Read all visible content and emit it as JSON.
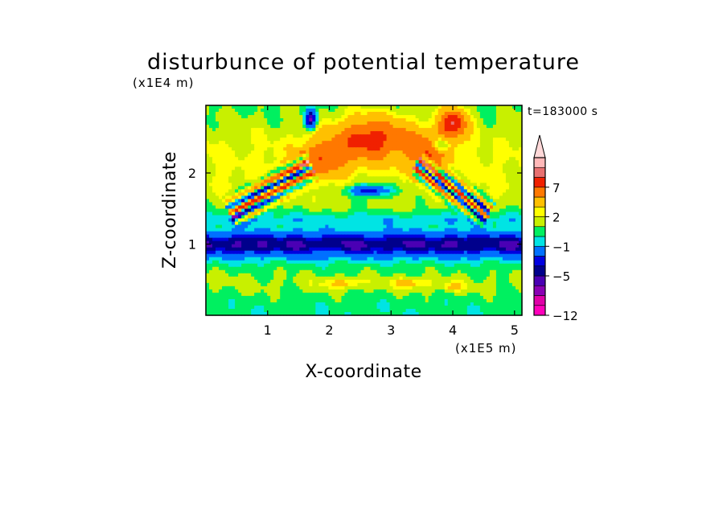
{
  "chart_data": {
    "type": "heatmap",
    "title": "disturbunce of potential temperature",
    "time_label": "t=183000 s",
    "xlabel": "X-coordinate",
    "ylabel": "Z-coordinate",
    "x_scale_label": "(x1E5 m)",
    "y_scale_label": "(x1E4 m)",
    "xlim": [
      0,
      5.12
    ],
    "ylim": [
      0,
      2.95
    ],
    "x_ticks": [
      {
        "value": 1,
        "label": "1"
      },
      {
        "value": 2,
        "label": "2"
      },
      {
        "value": 3,
        "label": "3"
      },
      {
        "value": 4,
        "label": "4"
      },
      {
        "value": 5,
        "label": "5"
      }
    ],
    "y_ticks": [
      {
        "value": 1,
        "label": "1"
      },
      {
        "value": 2,
        "label": "2"
      }
    ],
    "colorbar": {
      "levels": [
        -12,
        -10,
        -8,
        -6,
        -5,
        -4,
        -3,
        -1,
        0,
        1,
        2,
        3,
        5,
        7,
        9,
        11
      ],
      "colors": [
        "#ff00bb",
        "#e000a8",
        "#8a00b4",
        "#4a00b4",
        "#00008c",
        "#0000e0",
        "#0070ff",
        "#00e4e4",
        "#00f060",
        "#c8f000",
        "#ffff00",
        "#ffc000",
        "#ff7800",
        "#f02000",
        "#e87070",
        "#ffb8b8"
      ],
      "extend_color": "#ffd8d8",
      "tick_labels": [
        {
          "value": -12,
          "label": "−12"
        },
        {
          "value": -5,
          "label": "−5"
        },
        {
          "value": -1,
          "label": "−1"
        },
        {
          "value": 2,
          "label": "2"
        },
        {
          "value": 7,
          "label": "7"
        }
      ]
    },
    "features": [
      {
        "kind": "band",
        "z_center": 1.0,
        "z_half_width": 0.2,
        "value": -5.5
      },
      {
        "kind": "band",
        "z_center": 1.35,
        "z_half_width": 0.12,
        "value": -1.5
      },
      {
        "kind": "band",
        "z_center": 0.45,
        "z_half_width": 0.25,
        "value": 1.0
      },
      {
        "kind": "band",
        "z_center": 2.1,
        "z_half_width": 0.9,
        "value": 2.0
      },
      {
        "kind": "blob",
        "x": 2.7,
        "z": 2.5,
        "rx": 0.7,
        "rz": 0.35,
        "value": 6.0
      },
      {
        "kind": "blob",
        "x": 1.9,
        "z": 2.2,
        "rx": 0.5,
        "rz": 0.3,
        "value": 4.0
      },
      {
        "kind": "blob",
        "x": 3.6,
        "z": 2.3,
        "rx": 0.4,
        "rz": 0.3,
        "value": 4.0
      },
      {
        "kind": "blob",
        "x": 4.0,
        "z": 2.7,
        "rx": 0.25,
        "rz": 0.25,
        "value": 7.5
      },
      {
        "kind": "blob",
        "x": 2.65,
        "z": 1.75,
        "rx": 0.35,
        "rz": 0.08,
        "value": -5.0
      },
      {
        "kind": "blob",
        "x": 2.6,
        "z": 1.8,
        "rx": 0.7,
        "rz": 0.2,
        "value": -1.0
      },
      {
        "kind": "blob",
        "x": 3.8,
        "z": 2.4,
        "rx": 0.15,
        "rz": 0.1,
        "value": -5.0
      },
      {
        "kind": "blob",
        "x": 1.7,
        "z": 2.75,
        "rx": 0.1,
        "rz": 0.15,
        "value": -8.0
      },
      {
        "kind": "wave",
        "x_start": 0.4,
        "z_start": 1.4,
        "slope": 0.55,
        "length": 1.5,
        "wavelength": 0.35,
        "amplitude": 7.0,
        "width": 0.28
      },
      {
        "kind": "wave",
        "x_start": 4.6,
        "z_start": 1.4,
        "slope": -0.6,
        "length": 1.4,
        "wavelength": 0.3,
        "amplitude": 7.0,
        "width": 0.25
      },
      {
        "kind": "blob",
        "x": 2.2,
        "z": 0.45,
        "rx": 0.35,
        "rz": 0.08,
        "value": 2.5
      },
      {
        "kind": "blob",
        "x": 3.3,
        "z": 0.45,
        "rx": 0.35,
        "rz": 0.08,
        "value": 2.5
      },
      {
        "kind": "blob",
        "x": 4.0,
        "z": 0.4,
        "rx": 0.2,
        "rz": 0.07,
        "value": 2.5
      }
    ]
  }
}
